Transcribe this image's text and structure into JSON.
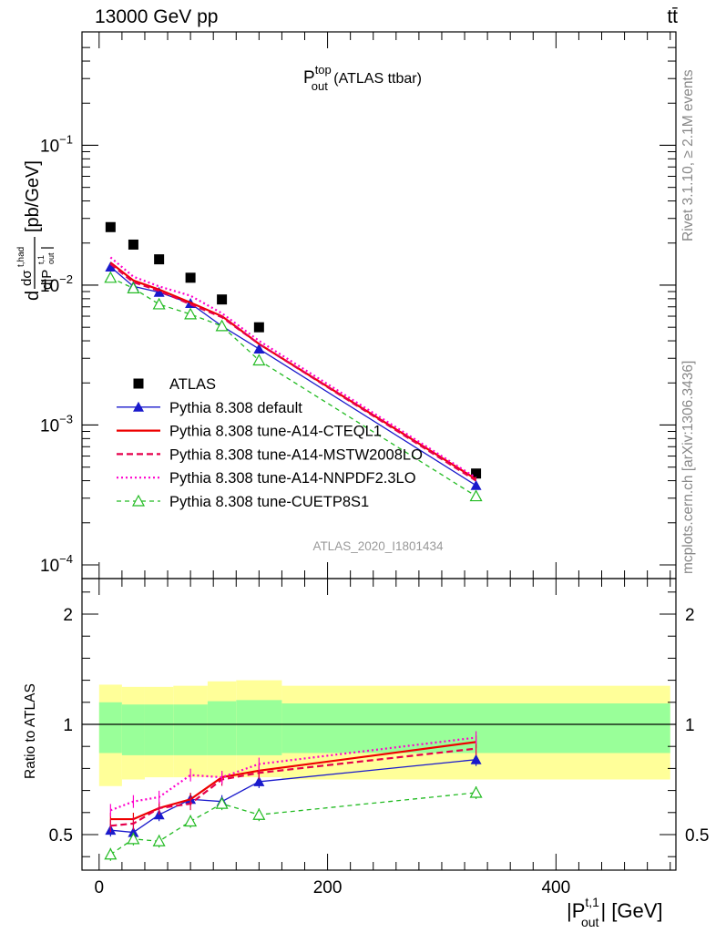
{
  "header": {
    "energy_label": "13000 GeV pp",
    "process_label": "tt̄"
  },
  "side_labels": {
    "rivet": "Rivet 3.1.10, ≥ 2.1M events",
    "mcplots": "mcplots.cern.ch [arXiv:1306.3436]"
  },
  "analysis_id": "ATLAS_2020_I1801434",
  "colors": {
    "atlas": "#000000",
    "default": "#1a1acc",
    "cteq": "#ee0000",
    "mstw": "#e6004c",
    "nnpdf": "#ff00cc",
    "cuetp8s1": "#22bb22",
    "band_yellow": "#ffff99",
    "band_green": "#99ff99"
  },
  "chart_data": [
    {
      "type": "scatter",
      "panel": "main",
      "title": "P_out^top (ATLAS ttbar)",
      "title_main": "P",
      "title_sup": "top",
      "title_sub": "out",
      "title_rest": " (ATLAS ttbar)",
      "ylabel": "d σ^t,had / d|P_out^t,1| [pb/GeV]",
      "ylabel_unit": "[pb/GeV]",
      "yscale": "log",
      "ylim": [
        0.0001,
        0.6
      ],
      "xlim": [
        -15,
        505
      ],
      "y_tick_labels": [
        "10^-4",
        "10^-3",
        "10^-2",
        "10^-1"
      ],
      "legend_position": "lower-left",
      "x": [
        10,
        30,
        52.5,
        80,
        107.5,
        140,
        330
      ],
      "series": [
        {
          "name": "ATLAS",
          "key": "atlas",
          "marker": "square",
          "values": [
            0.026,
            0.0195,
            0.0153,
            0.0113,
            0.0079,
            0.005,
            0.00045
          ]
        },
        {
          "name": "Pythia 8.308 default",
          "key": "default",
          "marker": "triangle",
          "values": [
            0.0135,
            0.0098,
            0.0089,
            0.0074,
            0.0051,
            0.0035,
            0.00037
          ]
        },
        {
          "name": "Pythia 8.308 tune-A14-CTEQL1",
          "key": "cteq",
          "marker": "none",
          "values": [
            0.0145,
            0.0108,
            0.0093,
            0.0075,
            0.006,
            0.0038,
            0.00041
          ]
        },
        {
          "name": "Pythia 8.308 tune-A14-MSTW2008LO",
          "key": "mstw",
          "marker": "none",
          "values": [
            0.0142,
            0.0105,
            0.0091,
            0.0073,
            0.0059,
            0.0038,
            0.0004
          ]
        },
        {
          "name": "Pythia 8.308 tune-A14-NNPDF2.3LO",
          "key": "nnpdf",
          "marker": "none",
          "values": [
            0.0158,
            0.0115,
            0.0098,
            0.0084,
            0.0063,
            0.004,
            0.00042
          ]
        },
        {
          "name": "Pythia 8.308 tune-CUETP8S1",
          "key": "cuetp8s1",
          "marker": "open-triangle",
          "values": [
            0.0113,
            0.0095,
            0.0073,
            0.0062,
            0.0051,
            0.0029,
            0.00031
          ]
        }
      ]
    },
    {
      "type": "line",
      "panel": "ratio",
      "ylabel": "Ratio to ATLAS",
      "xlabel": "|P_out^t,1| [GeV]",
      "xlabel_main": "|P",
      "xlabel_sup": "t,1",
      "xlabel_sub": "out",
      "xlabel_rest": "| [GeV]",
      "ylim": [
        0.35,
        2.3
      ],
      "xlim": [
        -15,
        505
      ],
      "x_ticks": [
        0,
        200,
        400
      ],
      "y_ticks": [
        0.5,
        1,
        2
      ],
      "bins": [
        [
          0,
          20
        ],
        [
          20,
          40
        ],
        [
          40,
          65
        ],
        [
          65,
          95
        ],
        [
          95,
          120
        ],
        [
          120,
          160
        ],
        [
          160,
          500
        ]
      ],
      "band_yellow": [
        [
          0.72,
          1.36
        ],
        [
          0.75,
          1.34
        ],
        [
          0.76,
          1.34
        ],
        [
          0.76,
          1.35
        ],
        [
          0.76,
          1.39
        ],
        [
          0.76,
          1.4
        ],
        [
          0.75,
          1.35
        ]
      ],
      "band_green": [
        [
          0.87,
          1.2
        ],
        [
          0.86,
          1.18
        ],
        [
          0.86,
          1.18
        ],
        [
          0.86,
          1.18
        ],
        [
          0.86,
          1.21
        ],
        [
          0.86,
          1.22
        ],
        [
          0.87,
          1.19
        ]
      ],
      "x": [
        10,
        30,
        52.5,
        80,
        107.5,
        140,
        330
      ],
      "series": [
        {
          "name": "Pythia 8.308 default",
          "key": "default",
          "values": [
            0.52,
            0.51,
            0.59,
            0.66,
            0.65,
            0.74,
            0.84
          ]
        },
        {
          "name": "Pythia 8.308 tune-A14-CTEQL1",
          "key": "cteq",
          "values": [
            0.57,
            0.57,
            0.62,
            0.66,
            0.76,
            0.79,
            0.92
          ]
        },
        {
          "name": "Pythia 8.308 tune-A14-MSTW2008LO",
          "key": "mstw",
          "values": [
            0.54,
            0.55,
            0.62,
            0.64,
            0.75,
            0.78,
            0.89
          ]
        },
        {
          "name": "Pythia 8.308 tune-A14-NNPDF2.3LO",
          "key": "nnpdf",
          "values": [
            0.61,
            0.65,
            0.67,
            0.77,
            0.76,
            0.82,
            0.94
          ]
        },
        {
          "name": "Pythia 8.308 tune-CUETP8S1",
          "key": "cuetp8s1",
          "values": [
            0.41,
            0.48,
            0.47,
            0.56,
            0.64,
            0.59,
            0.69
          ]
        }
      ]
    }
  ]
}
